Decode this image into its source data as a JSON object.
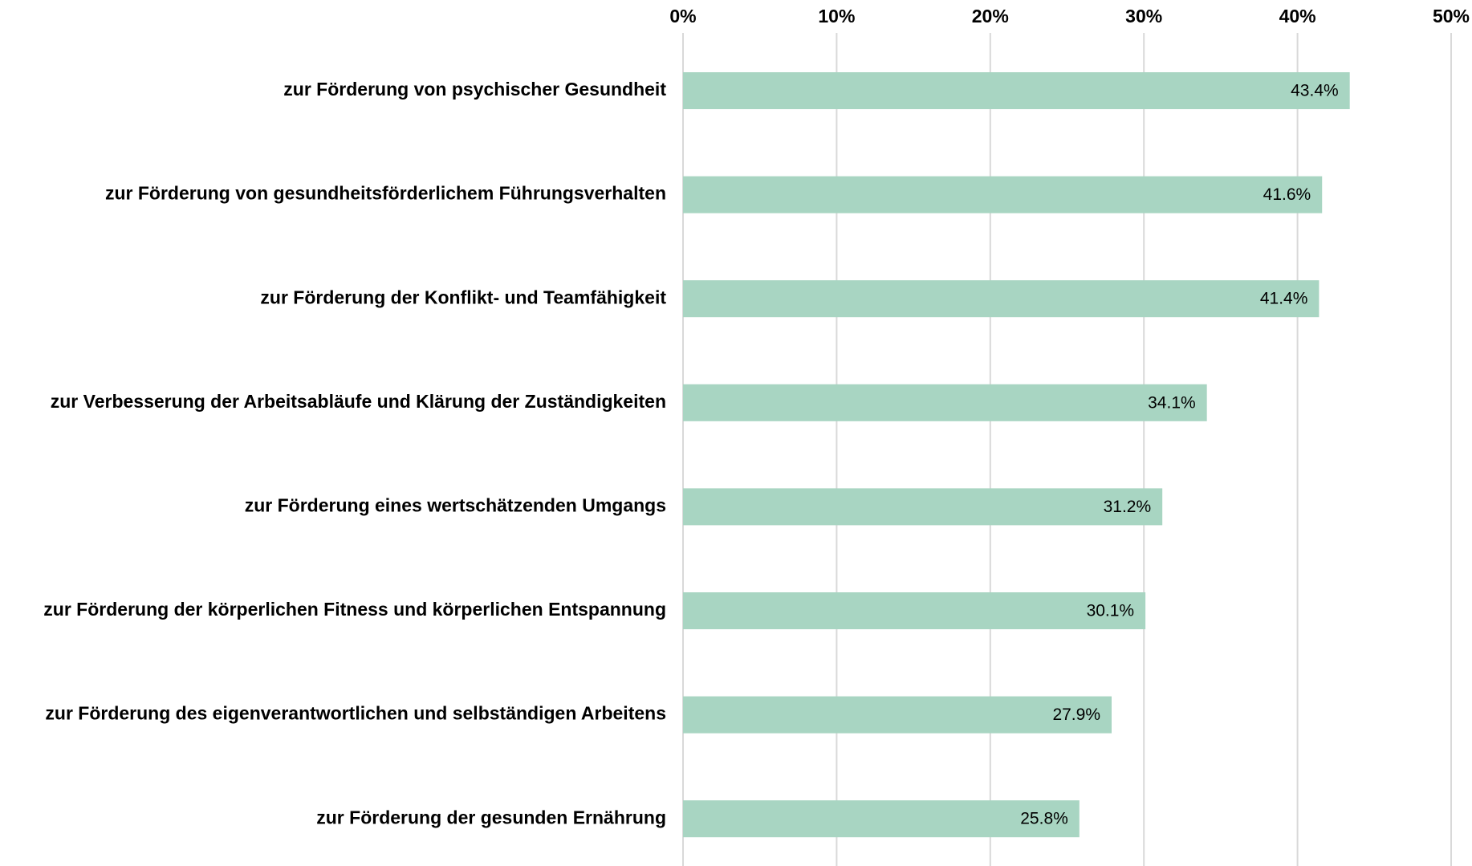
{
  "chart_data": {
    "type": "bar",
    "orientation": "horizontal",
    "categories": [
      "zur Förderung von psychischer Gesundheit",
      "zur Förderung von gesundheitsförderlichem Führungsverhalten",
      "zur Förderung der Konflikt- und Teamfähigkeit",
      "zur Verbesserung der Arbeitsabläufe und Klärung der Zuständigkeiten",
      "zur Förderung eines wertschätzenden Umgangs",
      "zur Förderung der körperlichen Fitness und körperlichen Entspannung",
      "zur Förderung des eigenverantwortlichen und selbständigen Arbeitens",
      "zur Förderung der gesunden Ernährung"
    ],
    "values": [
      43.4,
      41.6,
      41.4,
      34.1,
      31.2,
      30.1,
      27.9,
      25.8
    ],
    "value_labels": [
      "43.4%",
      "41.6%",
      "41.4%",
      "34.1%",
      "31.2%",
      "30.1%",
      "27.9%",
      "25.8%"
    ],
    "color": "#a8d5c2",
    "xlim": [
      0,
      50
    ],
    "xticks": [
      {
        "value": 0,
        "label": "0%"
      },
      {
        "value": 10,
        "label": "10%"
      },
      {
        "value": 20,
        "label": "20%"
      },
      {
        "value": 30,
        "label": "30%"
      },
      {
        "value": 40,
        "label": "40%"
      },
      {
        "value": 50,
        "label": "50%"
      }
    ],
    "grid": true
  }
}
